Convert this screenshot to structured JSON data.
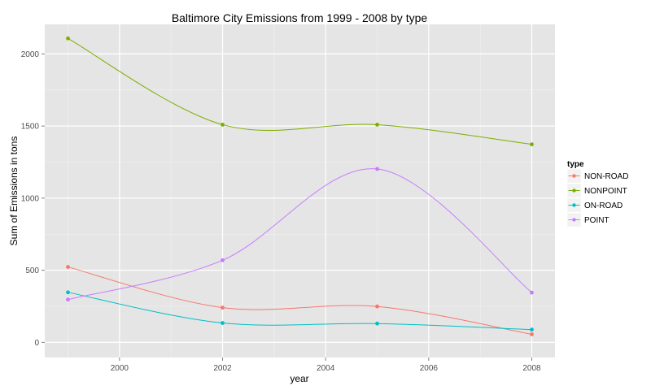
{
  "chart_data": {
    "type": "line",
    "title": "Baltimore City Emissions from 1999 - 2008 by type",
    "xlabel": "year",
    "ylabel": "Sum of Emissions in tons",
    "x": [
      1999,
      2002,
      2005,
      2008
    ],
    "xlim": [
      1998.55,
      2008.45
    ],
    "ylim": [
      -105,
      2205
    ],
    "xticks": [
      2000,
      2002,
      2004,
      2006,
      2008
    ],
    "yticks": [
      0,
      500,
      1000,
      1500,
      2000
    ],
    "xtick_labels": [
      "2000",
      "2002",
      "2004",
      "2006",
      "2008"
    ],
    "ytick_labels": [
      "0",
      "500",
      "1000",
      "1500",
      "2000"
    ],
    "grid": true,
    "legend": {
      "title": "type",
      "position": "right"
    },
    "series": [
      {
        "name": "NON-ROAD",
        "color": "#F8766D",
        "values": [
          522.9,
          240.8,
          248.9,
          55.8
        ]
      },
      {
        "name": "NONPOINT",
        "color": "#7CAE00",
        "values": [
          2107.6,
          1509.5,
          1509.5,
          1373.2
        ]
      },
      {
        "name": "ON-ROAD",
        "color": "#00BFC4",
        "values": [
          346.8,
          134.3,
          130.4,
          88.3
        ]
      },
      {
        "name": "POINT",
        "color": "#C77CFF",
        "values": [
          296.8,
          569.3,
          1202.5,
          344.98
        ]
      }
    ]
  }
}
